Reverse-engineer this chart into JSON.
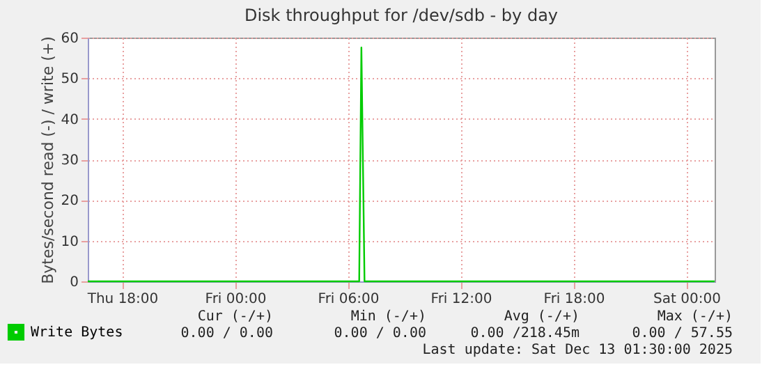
{
  "chart_data": {
    "type": "line",
    "title": "Disk throughput for /dev/sdb - by day",
    "ylabel": "Bytes/second read (-) / write (+)",
    "x": [
      "2025-12-11T16:10",
      "2025-12-12T06:36",
      "2025-12-12T06:43",
      "2025-12-12T06:53",
      "2025-12-13T01:30"
    ],
    "series": [
      {
        "name": "Write Bytes",
        "color": "#00cc00",
        "values": [
          0,
          0,
          57.55,
          0,
          0
        ]
      }
    ],
    "xlim": [
      "2025-12-11T16:10",
      "2025-12-13T01:30"
    ],
    "xticks": [
      {
        "value": "2025-12-11T18:00",
        "label": "Thu 18:00"
      },
      {
        "value": "2025-12-12T00:00",
        "label": "Fri 00:00"
      },
      {
        "value": "2025-12-12T06:00",
        "label": "Fri 06:00"
      },
      {
        "value": "2025-12-12T12:00",
        "label": "Fri 12:00"
      },
      {
        "value": "2025-12-12T18:00",
        "label": "Fri 18:00"
      },
      {
        "value": "2025-12-13T00:00",
        "label": "Sat 00:00"
      }
    ],
    "ylim": [
      0,
      60
    ],
    "yticks": [
      0,
      10,
      20,
      30,
      40,
      50,
      60
    ],
    "grid": true,
    "legend": "bottom left",
    "marker": "none",
    "line_style": "solid",
    "annotations": [
      "Cur (-/+)",
      "Min (-/+)",
      "Avg (-/+)",
      "Max (-/+)",
      "0.00 /   0.00",
      "0.00 /   0.00",
      "0.00 /218.45m",
      "0.00 / 57.55",
      "Last update: Sat Dec 13 01:30:00 2025"
    ]
  }
}
